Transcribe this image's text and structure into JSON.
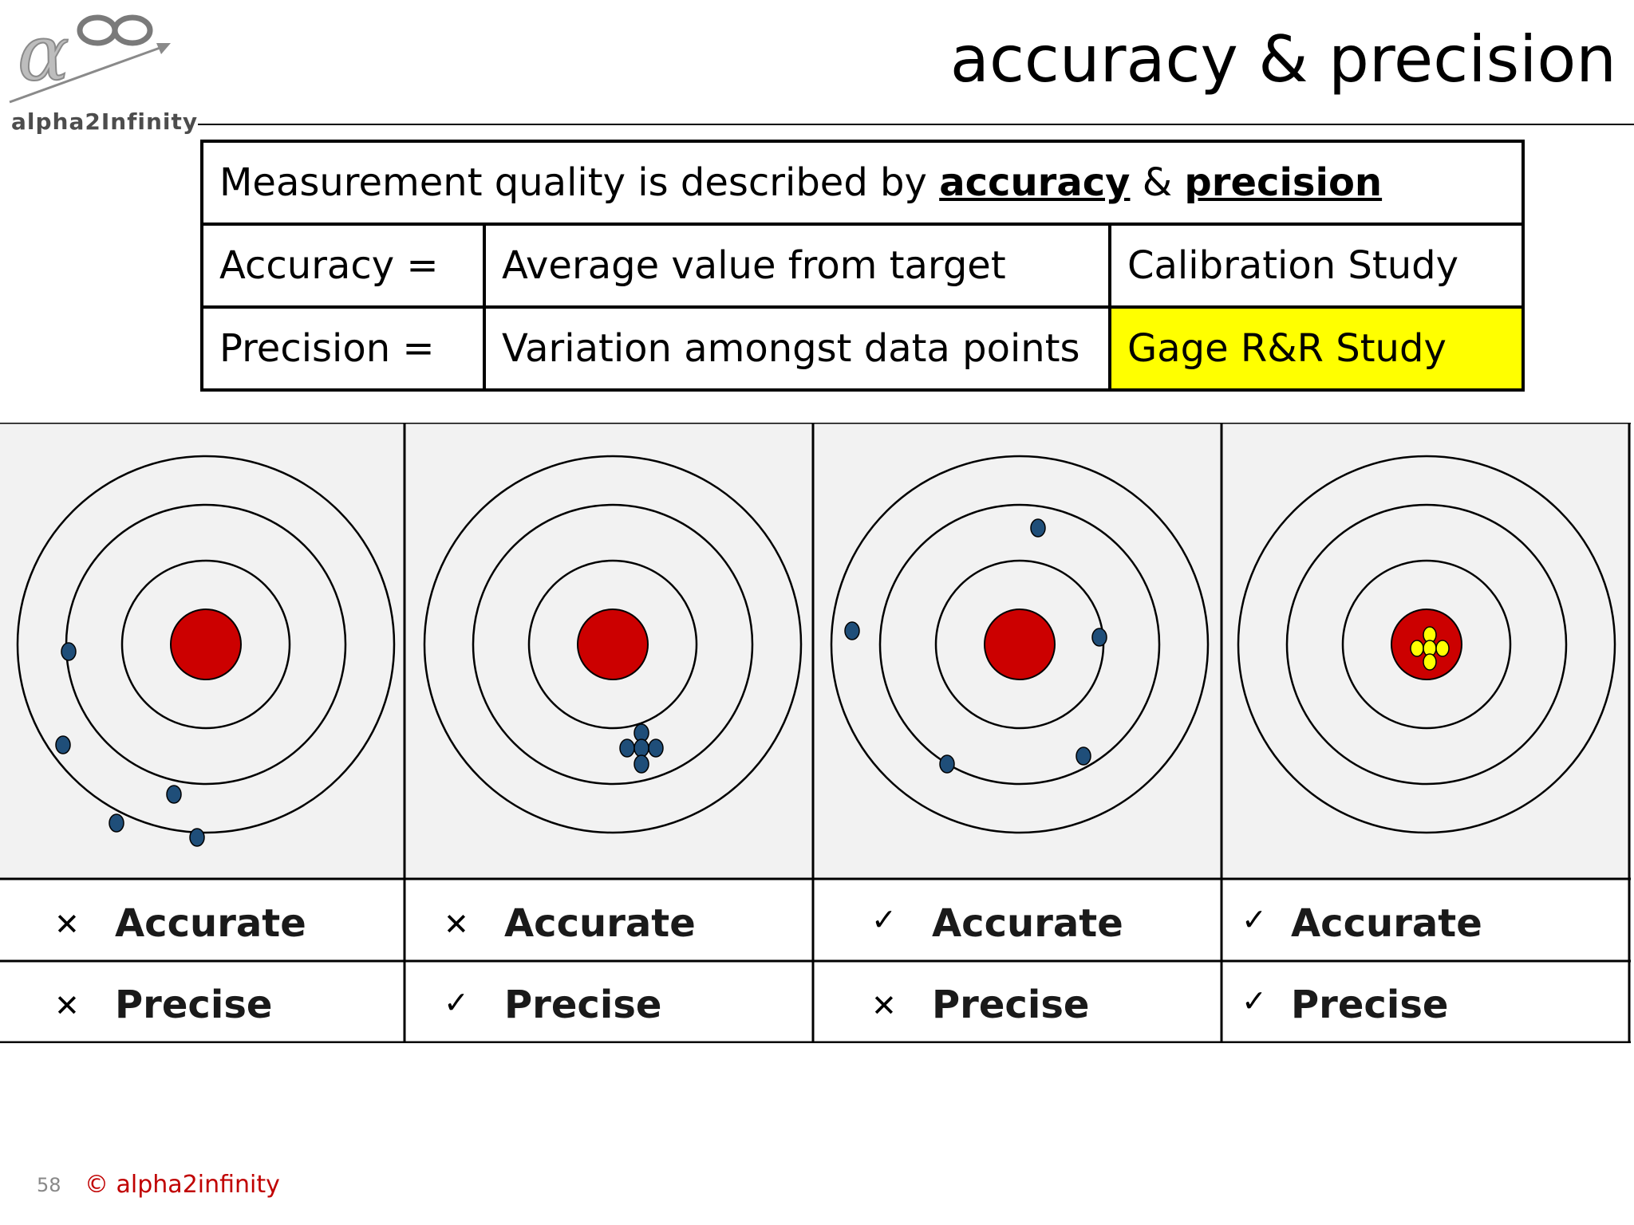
{
  "logo": {
    "text": "alpha2Infinity",
    "icons": [
      "alpha-icon",
      "infinity-icon",
      "arrow-icon"
    ]
  },
  "title": "accuracy & precision",
  "definitions": {
    "header_prefix": "Measurement quality is described by ",
    "header_term1": "accuracy",
    "header_amp": " & ",
    "header_term2": "precision",
    "rows": [
      {
        "term": "Accuracy =",
        "meaning": "Average value from target",
        "study": "Calibration Study"
      },
      {
        "term": "Precision =",
        "meaning": "Variation amongst data points",
        "study": "Gage R&R Study"
      }
    ],
    "highlight_color": "#ffff00"
  },
  "targets": [
    {
      "accurate": false,
      "precise": false
    },
    {
      "accurate": false,
      "precise": true
    },
    {
      "accurate": true,
      "precise": false
    },
    {
      "accurate": true,
      "precise": true
    }
  ],
  "labels": {
    "accurate": "Accurate",
    "precise": "Precise"
  },
  "marks": {
    "yes": "✓",
    "no": "✕"
  },
  "colors": {
    "bullseye": "#cc0000",
    "point": "#1f4e79",
    "point_on_target": "#ffff00",
    "panel_bg": "#f2f2f2"
  },
  "footer": {
    "page": "58",
    "copyright": "© alpha2infinity"
  }
}
